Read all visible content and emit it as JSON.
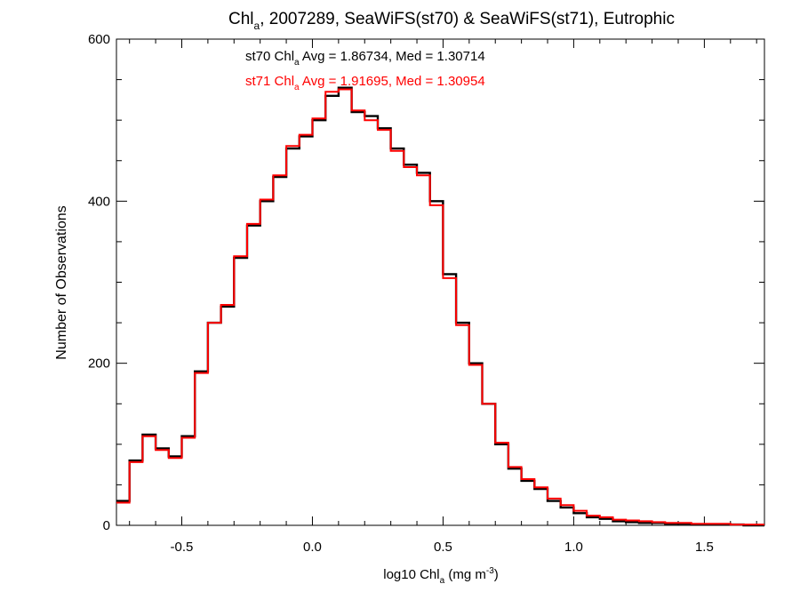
{
  "chart_data": {
    "type": "line",
    "title": {
      "pre": "Chl",
      "sub": "a",
      "post": ", 2007289, SeaWiFS(st70) & SeaWiFS(st71), Eutrophic"
    },
    "xlabel": {
      "pre": "log10 Chl",
      "sub": "a",
      "mid": " (mg m",
      "sup": "-3",
      "post": ")"
    },
    "ylabel": "Number of Observations",
    "xlim": [
      -0.75,
      1.73
    ],
    "ylim": [
      0,
      600
    ],
    "xticks": [
      -0.5,
      0.0,
      0.5,
      1.0,
      1.5
    ],
    "xtick_labels": [
      "-0.5",
      "0.0",
      "0.5",
      "1.0",
      "1.5"
    ],
    "yticks": [
      0,
      200,
      400,
      600
    ],
    "ytick_labels": [
      "0",
      "200",
      "400",
      "600"
    ],
    "grid": false,
    "step": "histogram",
    "annotations": [
      {
        "pre": "st70 Chl",
        "sub": "a",
        "post": " Avg = 1.86734, Med = 1.30714",
        "color": "#000000"
      },
      {
        "pre": "st71 Chl",
        "sub": "a",
        "post": " Avg = 1.91695, Med = 1.30954",
        "color": "#ff0000"
      }
    ],
    "x": [
      -0.75,
      -0.7,
      -0.65,
      -0.6,
      -0.55,
      -0.5,
      -0.45,
      -0.4,
      -0.35,
      -0.3,
      -0.25,
      -0.2,
      -0.15,
      -0.1,
      -0.05,
      0.0,
      0.05,
      0.1,
      0.15,
      0.2,
      0.25,
      0.3,
      0.35,
      0.4,
      0.45,
      0.5,
      0.55,
      0.6,
      0.65,
      0.7,
      0.75,
      0.8,
      0.85,
      0.9,
      0.95,
      1.0,
      1.05,
      1.1,
      1.15,
      1.2,
      1.25,
      1.3,
      1.35,
      1.4,
      1.45,
      1.5,
      1.55,
      1.6,
      1.65,
      1.7,
      1.73
    ],
    "series": [
      {
        "color": "#000000",
        "values": [
          30,
          80,
          112,
          95,
          85,
          110,
          190,
          250,
          270,
          330,
          370,
          400,
          430,
          465,
          480,
          500,
          530,
          540,
          510,
          505,
          490,
          465,
          445,
          435,
          400,
          310,
          250,
          200,
          150,
          100,
          70,
          55,
          45,
          30,
          22,
          15,
          10,
          8,
          5,
          4,
          3,
          3,
          2,
          2,
          1,
          1,
          1,
          1,
          0,
          0,
          0
        ]
      },
      {
        "color": "#ff0000",
        "values": [
          28,
          78,
          110,
          93,
          83,
          108,
          188,
          250,
          272,
          332,
          372,
          402,
          432,
          468,
          482,
          502,
          535,
          538,
          512,
          500,
          488,
          462,
          442,
          432,
          395,
          305,
          247,
          198,
          150,
          102,
          72,
          57,
          47,
          33,
          25,
          18,
          12,
          10,
          7,
          6,
          5,
          4,
          3,
          3,
          2,
          2,
          2,
          1,
          1,
          1,
          1
        ]
      }
    ]
  }
}
